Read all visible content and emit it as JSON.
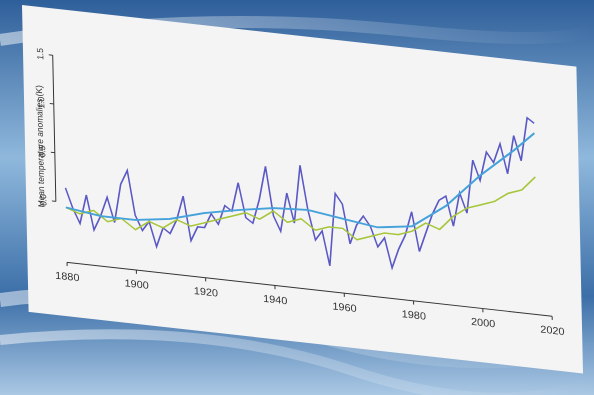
{
  "chart_data": {
    "type": "line",
    "y_label": "Mean temperature anomalies (K)",
    "xlim": [
      1880,
      2020
    ],
    "xticks": [
      1880,
      1900,
      1920,
      1940,
      1960,
      1980,
      2000,
      2020
    ],
    "ylim": [
      -0.5,
      1.6
    ],
    "yticks": [
      {
        "value": 0,
        "label": "0.0"
      },
      {
        "value": 0.5,
        "label": "0.5"
      },
      {
        "value": 1,
        "label": "1.0"
      },
      {
        "value": 1.5,
        "label": "1.5"
      }
    ],
    "series": [
      {
        "color": "#5a58c4",
        "x": [
          1880,
          1882,
          1884,
          1886,
          1888,
          1890,
          1892,
          1894,
          1896,
          1898,
          1900,
          1902,
          1904,
          1906,
          1908,
          1910,
          1912,
          1914,
          1916,
          1918,
          1920,
          1922,
          1924,
          1926,
          1928,
          1930,
          1932,
          1934,
          1936,
          1938,
          1940,
          1942,
          1944,
          1946,
          1948,
          1950,
          1952,
          1954,
          1956,
          1958,
          1960,
          1962,
          1964,
          1966,
          1968,
          1970,
          1972,
          1974,
          1976,
          1978,
          1980,
          1982,
          1984,
          1986,
          1988,
          1990,
          1992,
          1994,
          1996,
          1998,
          2000,
          2002,
          2004,
          2006,
          2008,
          2010,
          2012,
          2014,
          2016
        ],
        "values": [
          0.15,
          -0.05,
          -0.2,
          0.1,
          -0.25,
          -0.1,
          0.1,
          -0.15,
          0.25,
          0.4,
          -0.05,
          -0.2,
          -0.1,
          -0.35,
          -0.15,
          -0.2,
          -0.05,
          0.2,
          -0.25,
          -0.1,
          -0.1,
          0.05,
          -0.05,
          0.15,
          0.1,
          0.4,
          0.05,
          0.0,
          0.25,
          0.6,
          0.1,
          -0.05,
          0.35,
          0.05,
          0.65,
          0.2,
          -0.1,
          0.0,
          -0.35,
          0.4,
          0.3,
          -0.1,
          0.1,
          0.2,
          0.1,
          -0.1,
          0.0,
          -0.3,
          -0.1,
          0.05,
          0.3,
          -0.1,
          0.1,
          0.3,
          0.45,
          0.5,
          0.2,
          0.55,
          0.35,
          0.9,
          0.7,
          1.0,
          0.9,
          1.1,
          0.8,
          1.2,
          0.95,
          1.4,
          1.35
        ]
      },
      {
        "color": "#a6c63a",
        "x": [
          1880,
          1884,
          1888,
          1892,
          1896,
          1900,
          1904,
          1908,
          1912,
          1916,
          1920,
          1924,
          1928,
          1932,
          1936,
          1940,
          1944,
          1948,
          1952,
          1956,
          1960,
          1964,
          1968,
          1972,
          1976,
          1980,
          1984,
          1988,
          1992,
          1996,
          2000,
          2004,
          2008,
          2012,
          2016
        ],
        "values": [
          -0.05,
          -0.1,
          -0.05,
          -0.15,
          -0.1,
          -0.2,
          -0.1,
          -0.15,
          -0.05,
          -0.1,
          -0.05,
          0.0,
          0.05,
          0.1,
          0.05,
          0.15,
          0.05,
          0.1,
          0.0,
          0.05,
          0.05,
          -0.05,
          0.0,
          0.05,
          0.05,
          0.1,
          0.2,
          0.15,
          0.3,
          0.4,
          0.45,
          0.5,
          0.6,
          0.65,
          0.8
        ]
      },
      {
        "color": "#45a2da",
        "x": [
          1880,
          1890,
          1900,
          1910,
          1920,
          1930,
          1940,
          1950,
          1960,
          1970,
          1980,
          1990,
          2000,
          2010,
          2016
        ],
        "values": [
          -0.05,
          -0.1,
          -0.1,
          -0.05,
          0.05,
          0.12,
          0.18,
          0.2,
          0.15,
          0.1,
          0.15,
          0.4,
          0.75,
          1.05,
          1.25
        ]
      }
    ]
  }
}
